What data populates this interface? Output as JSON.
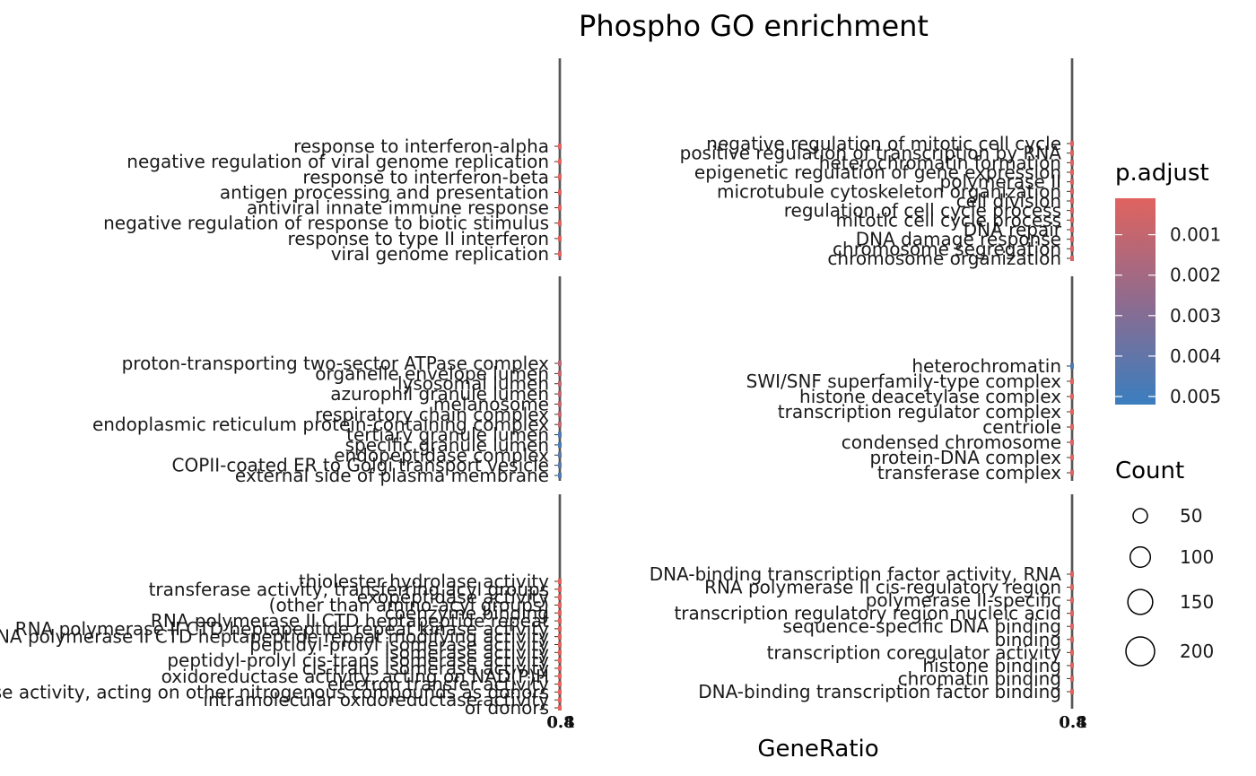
{
  "chart_data": {
    "type": "scatter",
    "title": "Phospho GO enrichment",
    "xlabel": "GeneRatio",
    "legend_color_title": "p.adjust",
    "legend_color_labels": [
      "0.001",
      "0.002",
      "0.003",
      "0.004",
      "0.005"
    ],
    "legend_color_values": [
      0.001,
      0.002,
      0.003,
      0.004,
      0.005
    ],
    "colors": {
      "low": "#e0635f",
      "high": "#3a7ebf"
    },
    "legend_size_title": "Count",
    "legend_size_labels": [
      "50",
      "100",
      "150",
      "200"
    ],
    "legend_size_values": [
      50,
      100,
      150,
      200
    ],
    "legend_position": "right",
    "panel_x_tick_labels": [
      "0.4",
      "0.8"
    ],
    "panels": [
      {
        "id": "BP-left",
        "terms": [
          "response to interferon-alpha",
          "negative regulation of viral genome replication",
          "response to interferon-beta",
          "antigen processing and presentation",
          "antiviral innate immune response",
          "negative regulation of response to biotic stimulus",
          "response to type II interferon",
          "viral genome replication"
        ],
        "p_adjust": [
          0.0001,
          0.0001,
          0.0001,
          0.0001,
          0.0001,
          0.0001,
          0.0001,
          0.0001
        ]
      },
      {
        "id": "BP-right",
        "terms": [
          "negative regulation of mitotic cell cycle",
          "positive regulation of transcription by RNA",
          "heterochromatin formation",
          "epigenetic regulation of gene expression",
          "polymerase II",
          "microtubule cytoskeleton organization",
          "cell division",
          "regulation of cell cycle process",
          "mitotic cell cycle process",
          "DNA repair",
          "DNA damage response",
          "chromosome segregation",
          "chromosome organization"
        ],
        "p_adjust": [
          0.0001,
          0.0001,
          0.0001,
          0.0001,
          0.0001,
          0.0001,
          0.0001,
          0.0001,
          0.0001,
          0.0001,
          0.0001,
          0.0001,
          0.0001
        ]
      },
      {
        "id": "CC-left",
        "terms": [
          "proton-transporting two-sector ATPase complex",
          "organelle envelope lumen",
          "lysosomal lumen",
          "azurophil granule lumen",
          "melanosome",
          "respiratory chain complex",
          "endoplasmic reticulum protein-containing complex",
          "tertiary granule lumen",
          "specific granule lumen",
          "endopeptidase complex",
          "COPII-coated ER to Golgi transport vesicle",
          "external side of plasma membrane"
        ],
        "p_adjust": [
          0.0012,
          0.001,
          0.001,
          0.001,
          0.001,
          0.001,
          0.001,
          0.0045,
          0.0048,
          0.0042,
          0.0042,
          0.0045
        ]
      },
      {
        "id": "CC-right",
        "terms": [
          "heterochromatin",
          "SWI/SNF superfamily-type complex",
          "histone deacetylase complex",
          "transcription regulator complex",
          "centriole",
          "condensed chromosome",
          "protein-DNA complex",
          "transferase complex"
        ],
        "p_adjust": [
          0.0048,
          0.0001,
          0.0001,
          0.0001,
          0.0001,
          0.0001,
          0.0001,
          0.0001
        ]
      },
      {
        "id": "MF-left",
        "terms": [
          "thiolester hydrolase activity",
          "transferase activity, transferring acyl groups",
          "exopeptidase activity",
          "(other than amino-acyl groups)",
          "coenzyme binding",
          "RNA polymerase II CTD heptapeptide repeat",
          "RNA polymerase II CTD heptapeptide repeat kinase activity",
          "RNA polymerase II CTD heptapeptide repeat modifying activity",
          "peptidyl-prolyl isomerase activity",
          "isomerase activity",
          "peptidyl-prolyl cis-trans isomerase activity",
          "cis-trans isomerase activity",
          "oxidoreductase activity, acting on NAD(P)H",
          "electron transfer activity",
          "oxidoreductase activity, acting on other nitrogenous compounds as donors",
          "intramolecular oxidoreductase activity",
          "of donors"
        ],
        "p_adjust": [
          0.0001,
          0.0001,
          0.0001,
          0.0001,
          0.0001,
          0.0001,
          0.0001,
          0.0001,
          0.0001,
          0.0001,
          0.0001,
          0.0001,
          0.0001,
          0.0001,
          0.0001,
          0.0001,
          0.0001
        ]
      },
      {
        "id": "MF-right",
        "terms": [
          "DNA-binding transcription factor activity, RNA",
          "RNA polymerase II cis-regulatory region",
          "polymerase II-specific",
          "transcription regulatory region nucleic acid",
          "sequence-specific DNA binding",
          "binding",
          "transcription coregulator activity",
          "histone binding",
          "chromatin binding",
          "DNA-binding transcription factor binding"
        ],
        "p_adjust": [
          0.0001,
          0.0001,
          0.0001,
          0.0001,
          0.0001,
          0.0001,
          0.0001,
          0.0001,
          0.0001,
          0.0001
        ]
      }
    ]
  }
}
